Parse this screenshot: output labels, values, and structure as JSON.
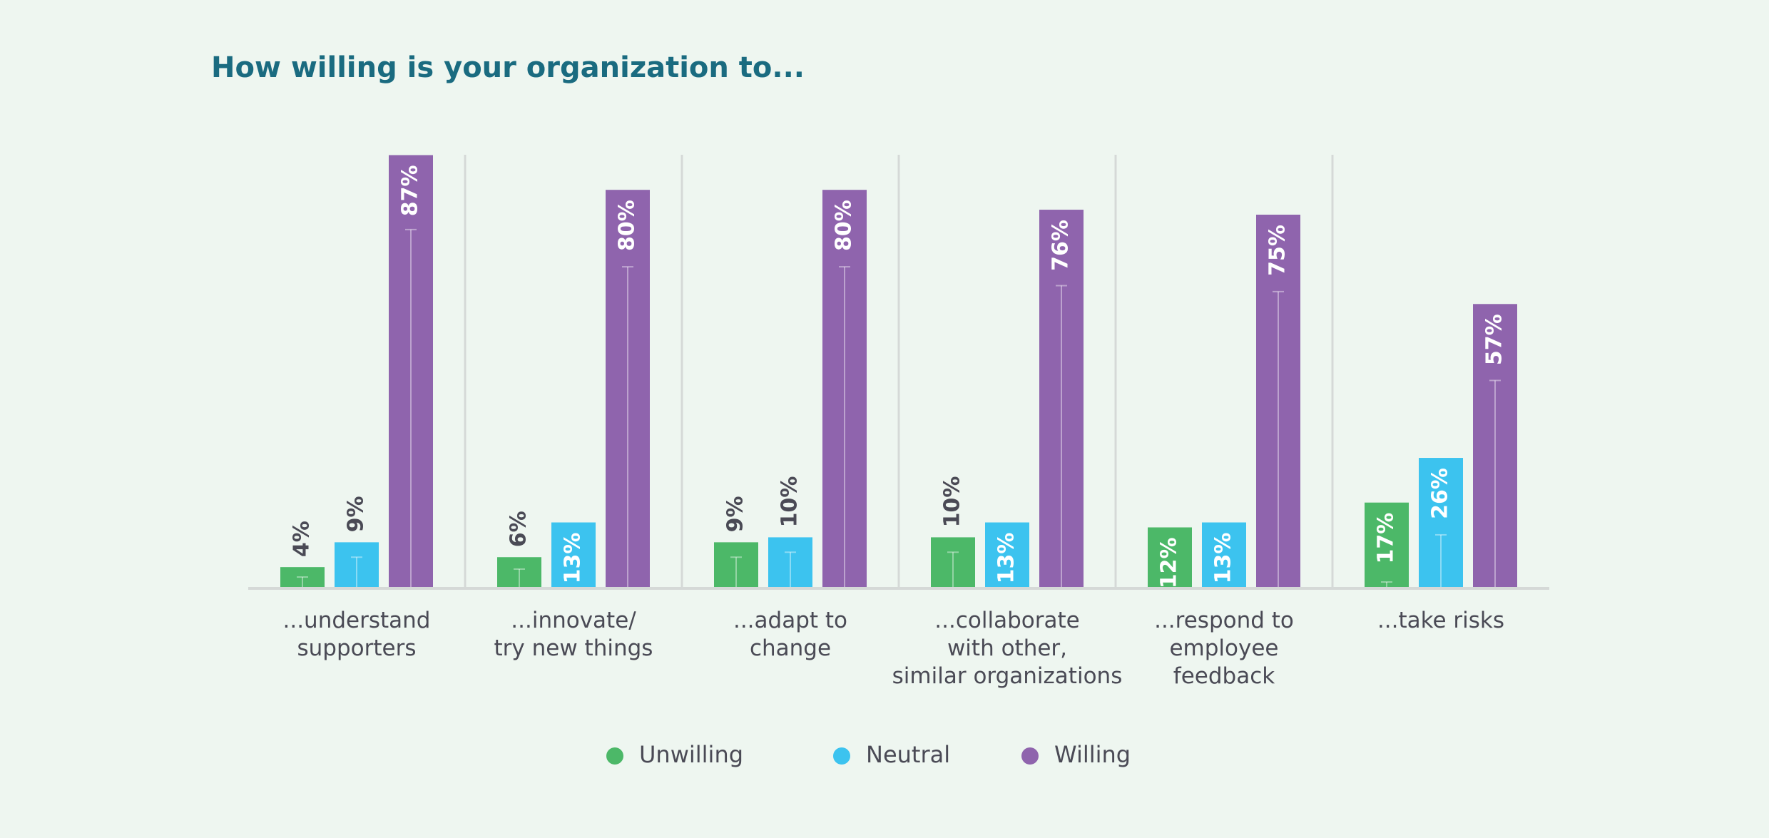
{
  "chart_data": {
    "type": "bar",
    "title": "How willing is your organization to...",
    "categories": [
      "...understand\nsupporters",
      "...innovate/\ntry new things",
      "...adapt to\nchange",
      "...collaborate\nwith other,\nsimilar organizations",
      "...respond to\nemployee\nfeedback",
      "...take risks"
    ],
    "series": [
      {
        "name": "Unwilling",
        "color": "#4cb868",
        "values": [
          4,
          6,
          9,
          10,
          12,
          17
        ],
        "value_labels": [
          "4%",
          "6%",
          "9%",
          "10%",
          "12%",
          "17%"
        ],
        "whiskers": [
          2,
          3.6,
          6,
          7,
          null,
          1
        ]
      },
      {
        "name": "Neutral",
        "color": "#3cc3ef",
        "values": [
          9,
          13,
          10,
          13,
          13,
          26
        ],
        "value_labels": [
          "9%",
          "13%",
          "10%",
          "13%",
          "13%",
          "26%"
        ],
        "whiskers": [
          6,
          null,
          7,
          null,
          null,
          10.5
        ]
      },
      {
        "name": "Willing",
        "color": "#8f64ad",
        "values": [
          87,
          80,
          80,
          76,
          75,
          57
        ],
        "value_labels": [
          "87%",
          "80%",
          "80%",
          "76%",
          "75%",
          "57%"
        ],
        "whiskers": [
          72,
          64.5,
          64.5,
          60.7,
          59.5,
          41.6
        ]
      }
    ],
    "ylim": [
      0,
      100
    ],
    "legend": "bottom"
  }
}
